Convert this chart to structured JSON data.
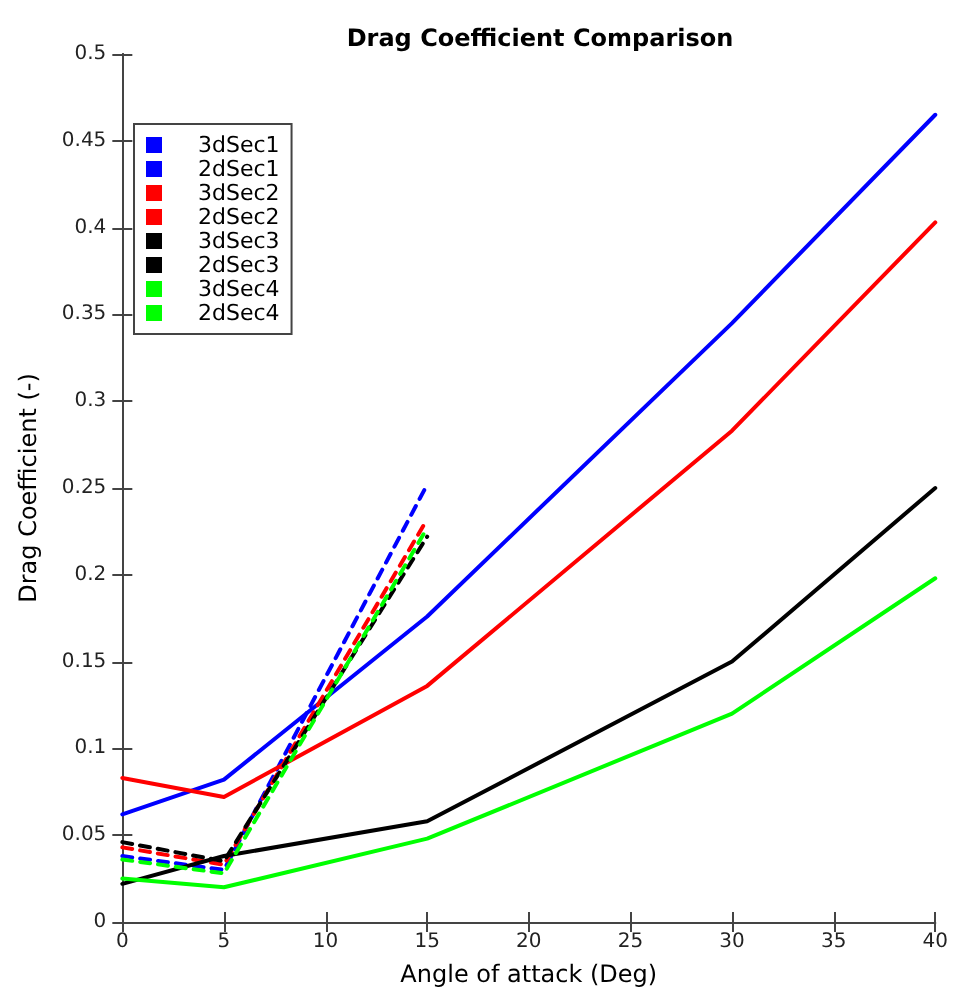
{
  "chart_data": {
    "type": "line",
    "title": "Drag Coefficient Comparison",
    "xlabel": "Angle of attack (Deg)",
    "ylabel": "Drag Coefficient (-)",
    "xlim": [
      0,
      40
    ],
    "xticks": [
      0,
      5,
      10,
      15,
      20,
      25,
      30,
      35,
      40
    ],
    "ylim": [
      0,
      0.5
    ],
    "yticks": [
      0,
      0.05,
      0.1,
      0.15,
      0.2,
      0.25,
      0.3,
      0.35,
      0.4,
      0.45,
      0.5
    ],
    "grid": false,
    "legend": "top left",
    "marker": "none",
    "series": [
      {
        "name": "3dSec1",
        "color": "#0000ff",
        "line_style": "solid",
        "x": [
          0,
          5,
          15,
          30,
          40
        ],
        "values": [
          0.062,
          0.082,
          0.176,
          0.345,
          0.465
        ]
      },
      {
        "name": "2dSec1",
        "color": "#0000ff",
        "line_style": "dashed",
        "x": [
          0,
          5,
          15
        ],
        "values": [
          0.038,
          0.03,
          0.252
        ]
      },
      {
        "name": "3dSec2",
        "color": "#ff0000",
        "line_style": "solid",
        "x": [
          0,
          5,
          15,
          30,
          40
        ],
        "values": [
          0.083,
          0.072,
          0.136,
          0.283,
          0.403
        ]
      },
      {
        "name": "2dSec2",
        "color": "#ff0000",
        "line_style": "dashed",
        "x": [
          0,
          5,
          15
        ],
        "values": [
          0.043,
          0.033,
          0.232
        ]
      },
      {
        "name": "3dSec3",
        "color": "#000000",
        "line_style": "solid",
        "x": [
          0,
          5,
          15,
          30,
          40
        ],
        "values": [
          0.022,
          0.038,
          0.058,
          0.15,
          0.25
        ]
      },
      {
        "name": "2dSec3",
        "color": "#000000",
        "line_style": "dashed",
        "x": [
          0,
          5,
          15
        ],
        "values": [
          0.046,
          0.035,
          0.222
        ]
      },
      {
        "name": "3dSec4",
        "color": "#00ff00",
        "line_style": "solid",
        "x": [
          0,
          5,
          15,
          30,
          40
        ],
        "values": [
          0.025,
          0.02,
          0.048,
          0.12,
          0.198
        ]
      },
      {
        "name": "2dSec4",
        "color": "#00ff00",
        "line_style": "dashed",
        "x": [
          0,
          5,
          15
        ],
        "values": [
          0.036,
          0.028,
          0.227
        ]
      }
    ]
  }
}
